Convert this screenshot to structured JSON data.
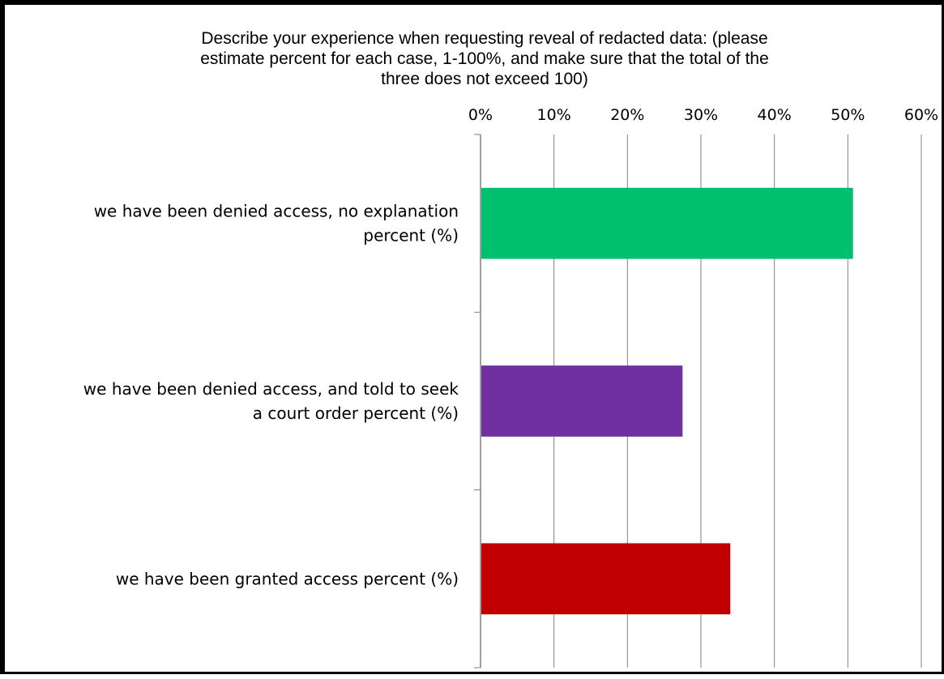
{
  "chart_data": {
    "type": "bar",
    "orientation": "horizontal",
    "title": "Describe your experience when requesting reveal of redacted data: (please estimate percent for each case, 1-100%, and make sure that the total of the three does not exceed 100)",
    "title_lines": [
      "Describe your experience when requesting reveal of redacted data: (please",
      "estimate percent for each case, 1-100%, and make sure that the total of the",
      "three does not exceed 100)"
    ],
    "categories": [
      {
        "name": "we have been denied access, no explanation percent (%)",
        "label_lines": [
          "we have been denied access, no explanation",
          "percent (%)"
        ]
      },
      {
        "name": "we have been denied access, and told to seek a court order percent (%)",
        "label_lines": [
          "we have been denied access, and told to seek",
          "a court order percent (%)"
        ]
      },
      {
        "name": "we have been granted access percent (%)",
        "label_lines": [
          "we have been granted access percent (%)"
        ]
      }
    ],
    "values": [
      50.7,
      27.5,
      34.0
    ],
    "colors": [
      "#00c070",
      "#7030a0",
      "#c00000"
    ],
    "xlim": [
      0,
      60
    ],
    "x_ticks": [
      0,
      10,
      20,
      30,
      40,
      50,
      60
    ],
    "x_tick_labels": [
      "0%",
      "10%",
      "20%",
      "30%",
      "40%",
      "50%",
      "60%"
    ],
    "xlabel": "",
    "ylabel": "",
    "x_axis_position": "top",
    "grid": true,
    "legend": "none"
  }
}
